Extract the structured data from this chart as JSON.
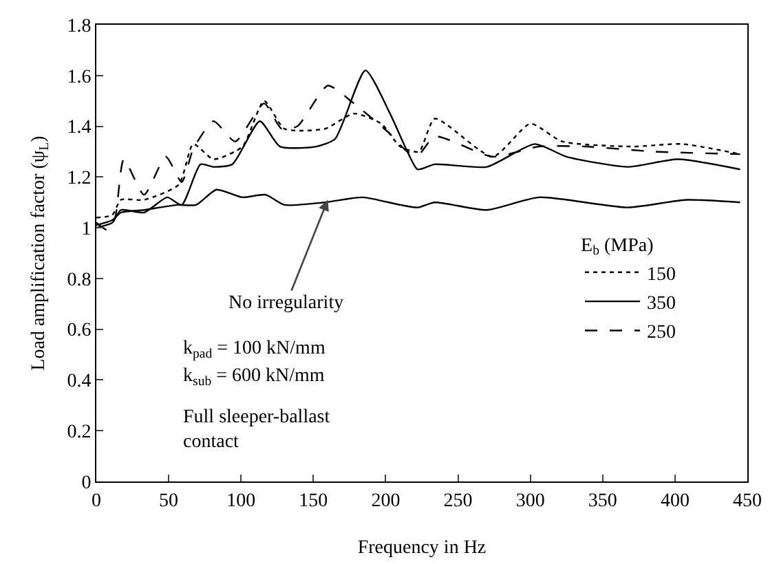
{
  "chart_data": {
    "type": "line",
    "xlabel": "Frequency in Hz",
    "ylabel": "Load amplification factor (ψ$_{L}$)",
    "legend_title": "E$_{b}$ (MPa)",
    "xlim": [
      0,
      450
    ],
    "xticks": [
      0,
      50,
      100,
      150,
      200,
      250,
      300,
      350,
      400,
      450
    ],
    "ylim": [
      0,
      1.8
    ],
    "yticks": [
      0,
      0.2,
      0.4,
      0.6,
      0.8,
      1,
      1.2,
      1.4,
      1.6,
      1.8
    ],
    "grid": false,
    "legend": "right",
    "marker": "none",
    "series": [
      {
        "name": "150",
        "color": "#000000",
        "line_style": "dotted",
        "x": [
          0,
          11,
          17,
          33,
          57,
          67,
          81,
          101,
          116,
          130,
          158,
          178,
          197,
          210,
          223,
          234,
          274,
          300,
          322,
          370,
          405,
          445
        ],
        "values": [
          1.04,
          1.05,
          1.11,
          1.11,
          1.17,
          1.33,
          1.27,
          1.32,
          1.5,
          1.39,
          1.39,
          1.45,
          1.41,
          1.32,
          1.3,
          1.43,
          1.28,
          1.41,
          1.34,
          1.32,
          1.33,
          1.29
        ]
      },
      {
        "name": "350",
        "color": "#000000",
        "line_style": "solid",
        "x": [
          0,
          11,
          17,
          33,
          49,
          59,
          72,
          81,
          94,
          113,
          127,
          152,
          165,
          186,
          203,
          215,
          222,
          234,
          270,
          303,
          325,
          367,
          402,
          445
        ],
        "values": [
          1.0,
          1.02,
          1.07,
          1.06,
          1.12,
          1.09,
          1.25,
          1.24,
          1.25,
          1.42,
          1.32,
          1.32,
          1.35,
          1.62,
          1.45,
          1.3,
          1.23,
          1.25,
          1.24,
          1.33,
          1.28,
          1.24,
          1.27,
          1.23
        ]
      },
      {
        "name": "250",
        "color": "#000000",
        "line_style": "dashed",
        "x": [
          0,
          8,
          13,
          19,
          33,
          48,
          59,
          67,
          81,
          96,
          116,
          128,
          139,
          160,
          178,
          203,
          215,
          223,
          234,
          274,
          306,
          338,
          386,
          445
        ],
        "values": [
          1.02,
          0.99,
          1.04,
          1.27,
          1.13,
          1.28,
          1.18,
          1.31,
          1.42,
          1.34,
          1.49,
          1.39,
          1.4,
          1.56,
          1.49,
          1.37,
          1.3,
          1.29,
          1.36,
          1.28,
          1.32,
          1.32,
          1.3,
          1.29
        ]
      },
      {
        "color": "#000000",
        "line_style": "solid",
        "x": [
          0,
          11,
          17,
          33,
          56,
          69,
          83,
          101,
          117,
          130,
          158,
          184,
          210,
          222,
          234,
          270,
          306,
          367,
          408,
          445
        ],
        "values": [
          1.01,
          1.03,
          1.06,
          1.07,
          1.09,
          1.09,
          1.15,
          1.12,
          1.13,
          1.09,
          1.1,
          1.12,
          1.09,
          1.08,
          1.1,
          1.07,
          1.12,
          1.08,
          1.11,
          1.1
        ]
      }
    ],
    "annotations": [
      {
        "text": "No irregularity",
        "x": 160,
        "y": 1.11
      },
      "k$_{pad}$ = 100 kN/mm",
      "k$_{sub}$ = 600 kN/mm",
      "Full sleeper-ballast contact"
    ]
  }
}
